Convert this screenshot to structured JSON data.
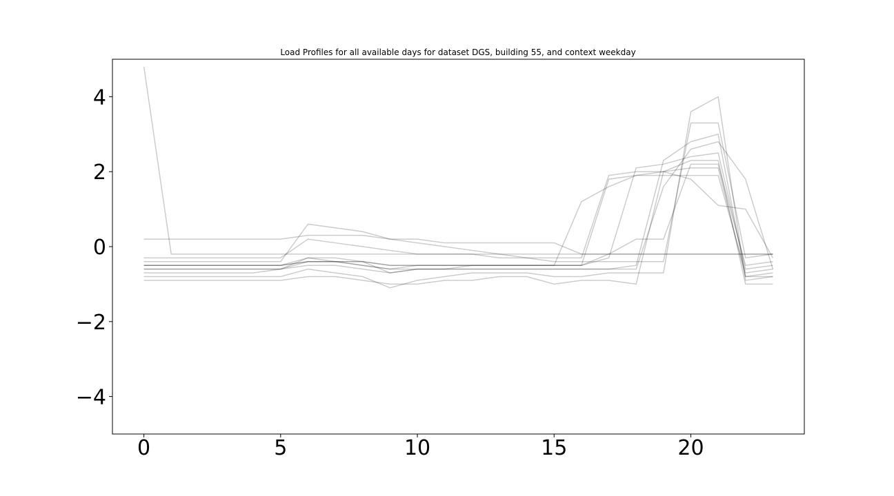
{
  "chart_data": {
    "type": "line",
    "title": "Load Profiles for all available days for dataset DGS, building 55, and context weekday",
    "xlabel": "",
    "ylabel": "",
    "xlim": [
      -1.15,
      24.15
    ],
    "ylim": [
      -5,
      5
    ],
    "xticks": [
      0,
      5,
      10,
      15,
      20
    ],
    "yticks": [
      4,
      2,
      0,
      -2,
      -4
    ],
    "ytick_labels": [
      "4",
      "2",
      "0",
      "−2",
      "−4"
    ],
    "grid": false,
    "legend": "none",
    "line_color": "#000000",
    "line_alpha": 0.2,
    "x": [
      0,
      1,
      2,
      3,
      4,
      5,
      6,
      7,
      8,
      9,
      10,
      11,
      12,
      13,
      14,
      15,
      16,
      17,
      18,
      19,
      20,
      21,
      22,
      23
    ],
    "series": [
      {
        "values": [
          4.8,
          -0.2,
          -0.2,
          -0.2,
          -0.2,
          -0.2,
          -0.2,
          -0.2,
          -0.2,
          -0.2,
          -0.2,
          -0.2,
          -0.2,
          -0.2,
          -0.2,
          -0.2,
          -0.2,
          -0.2,
          -0.2,
          -0.2,
          -0.2,
          -0.2,
          -0.2,
          -0.2
        ]
      },
      {
        "values": [
          0.2,
          0.2,
          0.2,
          0.2,
          0.2,
          0.2,
          0.3,
          0.3,
          0.3,
          0.2,
          0.2,
          0.1,
          0.1,
          0.1,
          0.1,
          0.1,
          -0.2,
          -0.2,
          -0.2,
          -0.2,
          -0.2,
          -0.2,
          -0.2,
          -0.2
        ]
      },
      {
        "values": [
          -0.5,
          -0.5,
          -0.5,
          -0.5,
          -0.5,
          -0.5,
          -0.4,
          -0.4,
          -0.4,
          -0.5,
          -0.5,
          -0.5,
          -0.5,
          -0.5,
          -0.5,
          -0.5,
          -0.5,
          1.8,
          1.9,
          1.9,
          1.9,
          1.9,
          -0.7,
          -0.6
        ]
      },
      {
        "values": [
          -0.6,
          -0.6,
          -0.6,
          -0.6,
          -0.6,
          -0.6,
          -0.4,
          -0.4,
          -0.5,
          -0.6,
          -0.6,
          -0.6,
          -0.5,
          -0.5,
          -0.5,
          -0.5,
          1.2,
          1.6,
          1.9,
          2.0,
          2.1,
          2.1,
          -0.8,
          -0.7
        ]
      },
      {
        "values": [
          -0.5,
          -0.5,
          -0.5,
          -0.5,
          -0.5,
          -0.5,
          -0.3,
          -0.4,
          -0.5,
          -0.6,
          -0.5,
          -0.5,
          -0.5,
          -0.5,
          -0.5,
          -0.5,
          -0.5,
          -0.3,
          2.1,
          2.2,
          2.4,
          2.5,
          -0.6,
          -0.5
        ]
      },
      {
        "values": [
          -0.7,
          -0.7,
          -0.7,
          -0.7,
          -0.7,
          -0.6,
          -0.5,
          -0.5,
          -0.6,
          -0.7,
          -0.6,
          -0.6,
          -0.6,
          -0.6,
          -0.6,
          -0.6,
          -0.6,
          -0.6,
          -0.5,
          2.3,
          2.8,
          3.0,
          -0.8,
          -0.8
        ]
      },
      {
        "values": [
          -0.4,
          -0.4,
          -0.4,
          -0.4,
          -0.4,
          -0.4,
          0.6,
          0.5,
          0.4,
          0.2,
          0.1,
          0.0,
          -0.1,
          -0.2,
          -0.3,
          -0.4,
          -0.4,
          -0.4,
          -0.4,
          -0.4,
          3.3,
          3.3,
          -0.3,
          -0.2
        ]
      },
      {
        "values": [
          -0.8,
          -0.8,
          -0.8,
          -0.8,
          -0.8,
          -0.8,
          -0.6,
          -0.7,
          -0.8,
          -1.1,
          -0.9,
          -0.8,
          -0.7,
          -0.7,
          -0.7,
          -0.8,
          -0.8,
          -0.7,
          -0.7,
          -0.7,
          3.6,
          4.0,
          -0.9,
          -0.8
        ]
      },
      {
        "values": [
          -0.5,
          -0.5,
          -0.5,
          -0.5,
          -0.5,
          -0.5,
          -0.4,
          -0.4,
          -0.4,
          -0.5,
          -0.5,
          -0.5,
          -0.5,
          -0.5,
          -0.5,
          -0.5,
          -0.5,
          -0.2,
          0.2,
          0.2,
          2.2,
          2.2,
          -0.5,
          -0.4
        ]
      },
      {
        "values": [
          -0.6,
          -0.6,
          -0.6,
          -0.6,
          -0.6,
          -0.6,
          -0.3,
          -0.3,
          -0.4,
          -0.7,
          -0.6,
          -0.6,
          -0.6,
          -0.6,
          -0.6,
          -0.6,
          -0.6,
          -0.6,
          -0.6,
          1.6,
          2.6,
          2.8,
          1.8,
          -0.6
        ]
      },
      {
        "values": [
          -0.3,
          -0.3,
          -0.3,
          -0.3,
          -0.3,
          -0.3,
          0.2,
          0.1,
          0.0,
          -0.1,
          -0.2,
          -0.2,
          -0.2,
          -0.3,
          -0.3,
          -0.3,
          -0.3,
          1.9,
          2.0,
          2.0,
          1.8,
          1.1,
          1.0,
          -0.3
        ]
      },
      {
        "values": [
          -0.9,
          -0.9,
          -0.9,
          -0.9,
          -0.9,
          -0.9,
          -0.8,
          -0.8,
          -0.9,
          -1.0,
          -1.0,
          -0.9,
          -0.9,
          -0.8,
          -0.8,
          -1.0,
          -0.9,
          -0.9,
          -1.0,
          2.0,
          2.3,
          2.3,
          -1.0,
          -1.0
        ]
      }
    ]
  }
}
